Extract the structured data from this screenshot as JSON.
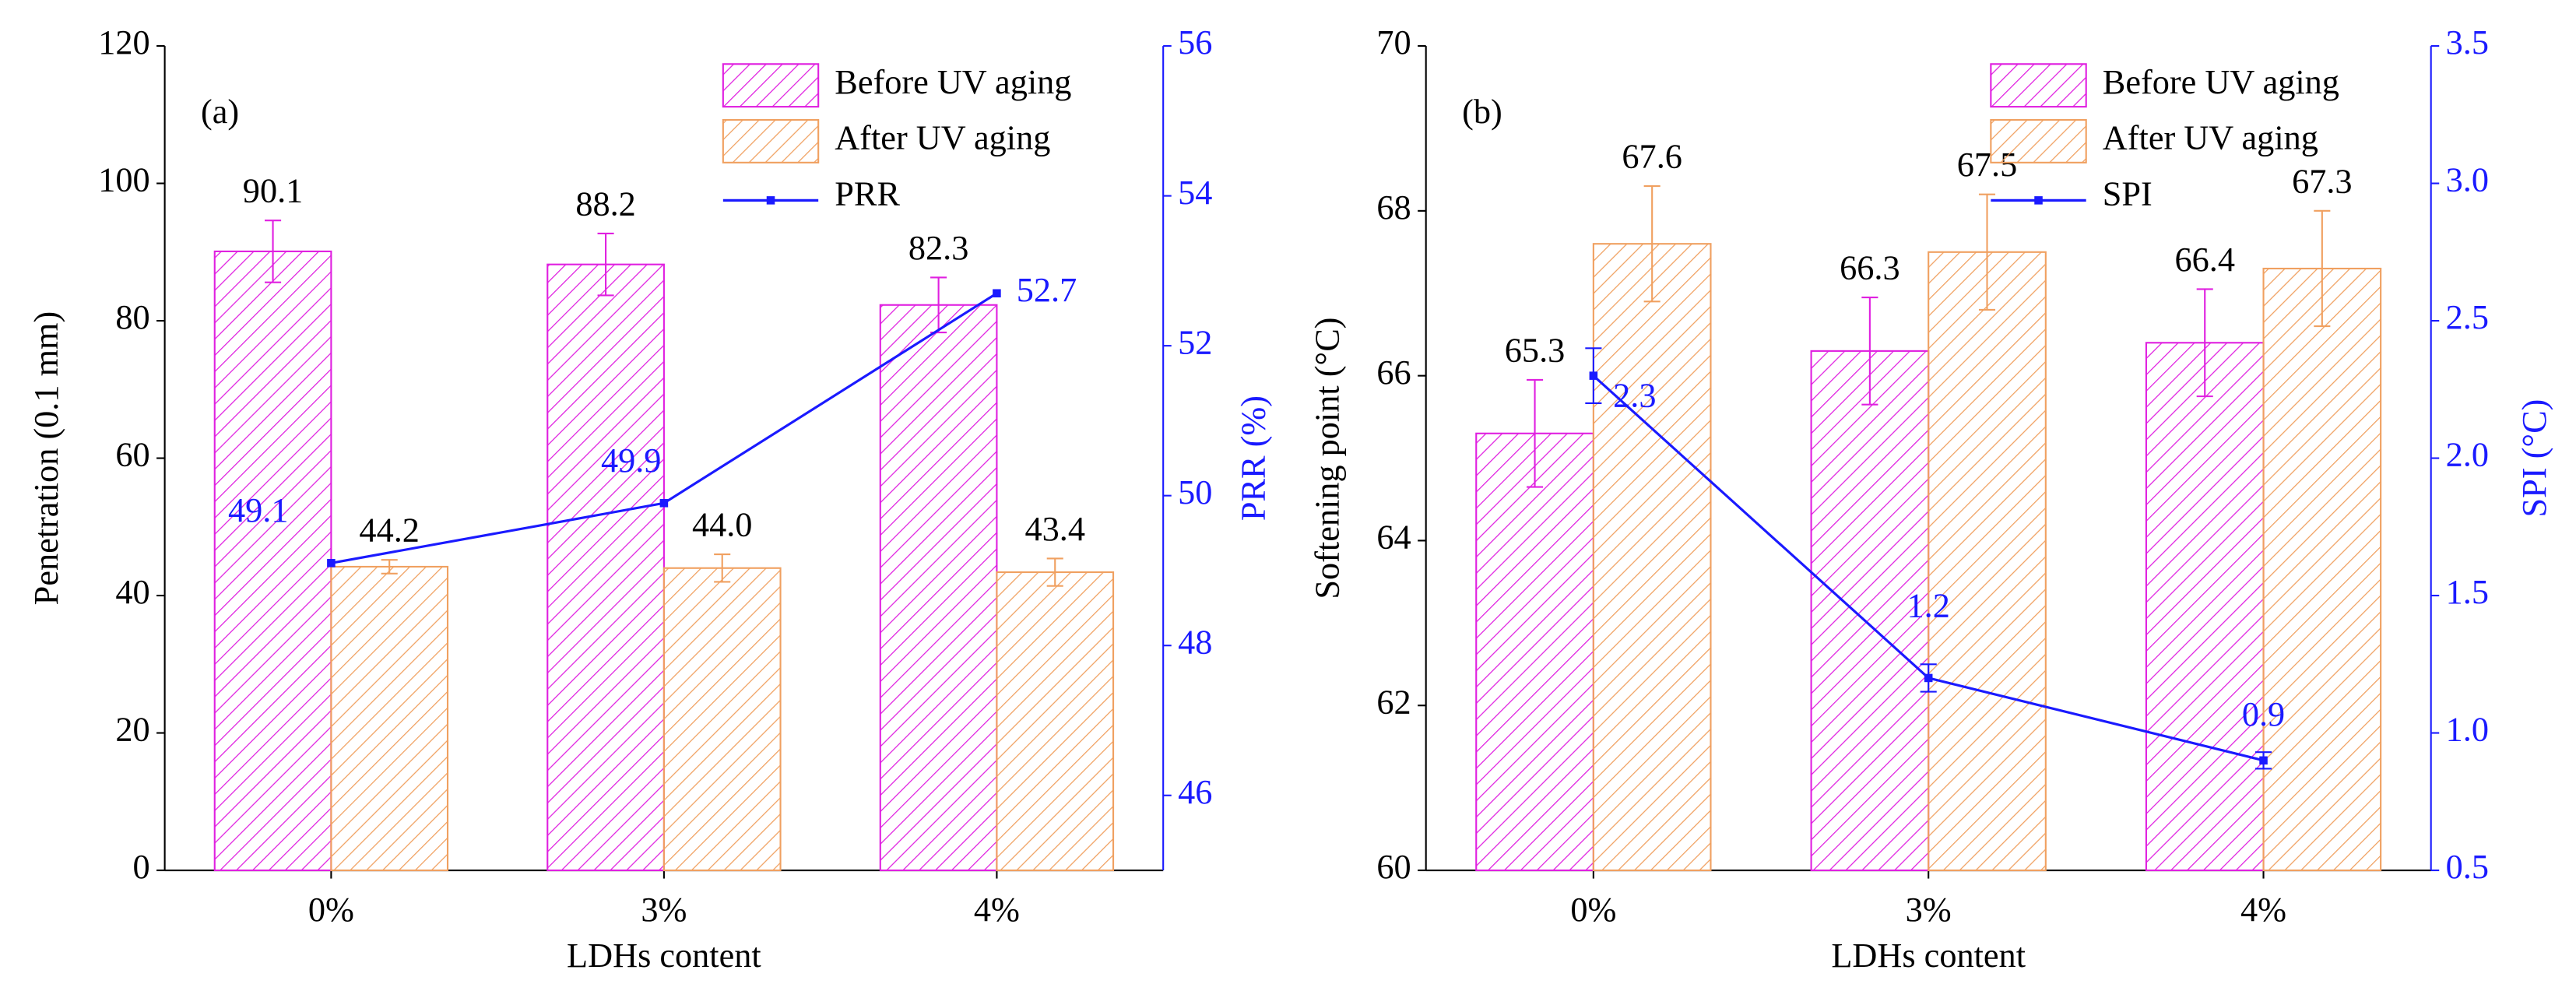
{
  "chart_data": [
    {
      "type": "bar",
      "panel_label": "(a)",
      "x_label": "LDHs content",
      "y_label": "Penetration (0.1 mm)",
      "y2_label": "PRR (%)",
      "categories": [
        "0%",
        "3%",
        "4%"
      ],
      "ylim": [
        0,
        120
      ],
      "yticks": [
        0,
        20,
        40,
        60,
        80,
        100,
        120
      ],
      "y2lim": [
        45,
        56
      ],
      "y2ticks": [
        46,
        48,
        50,
        52,
        54,
        56
      ],
      "legend": "upper right",
      "series": [
        {
          "name": "Before UV aging",
          "color": "#e020e0",
          "values": [
            90.1,
            88.2,
            82.3
          ],
          "errors": [
            4.5,
            4.5,
            4.0
          ]
        },
        {
          "name": "After UV aging",
          "color": "#f0a060",
          "values": [
            44.2,
            44.0,
            43.4
          ],
          "value_labels": [
            "44.2",
            "44.0",
            "43.4"
          ],
          "errors": [
            1.0,
            2.0,
            2.0
          ]
        },
        {
          "name": "PRR",
          "color": "#1a1aff",
          "axis": "y2",
          "values": [
            49.1,
            49.9,
            52.7
          ]
        }
      ]
    },
    {
      "type": "bar",
      "panel_label": "(b)",
      "x_label": "LDHs content",
      "y_label": "Softening point (°C)",
      "y2_label": "SPI (°C)",
      "categories": [
        "0%",
        "3%",
        "4%"
      ],
      "ylim": [
        60,
        70
      ],
      "yticks": [
        60,
        62,
        64,
        66,
        68,
        70
      ],
      "y2lim": [
        0.5,
        3.5
      ],
      "y2ticks": [
        0.5,
        {
          "value": 1,
          "label": "1.0"
        },
        1.5,
        {
          "value": 2,
          "label": "2.0"
        },
        2.5,
        {
          "value": 3,
          "label": "3.0"
        },
        3.5
      ],
      "legend": "upper right",
      "series": [
        {
          "name": "Before UV aging",
          "color": "#e020e0",
          "values": [
            65.3,
            66.3,
            66.4
          ],
          "errors": [
            0.65,
            0.65,
            0.65
          ]
        },
        {
          "name": "After UV aging",
          "color": "#f0a060",
          "values": [
            67.6,
            67.5,
            67.3
          ],
          "errors": [
            0.7,
            0.7,
            0.7
          ]
        },
        {
          "name": "SPI",
          "color": "#1a1aff",
          "axis": "y2",
          "values": [
            2.3,
            1.2,
            0.9
          ],
          "errors": [
            0.1,
            0.05,
            0.03
          ]
        }
      ]
    }
  ]
}
